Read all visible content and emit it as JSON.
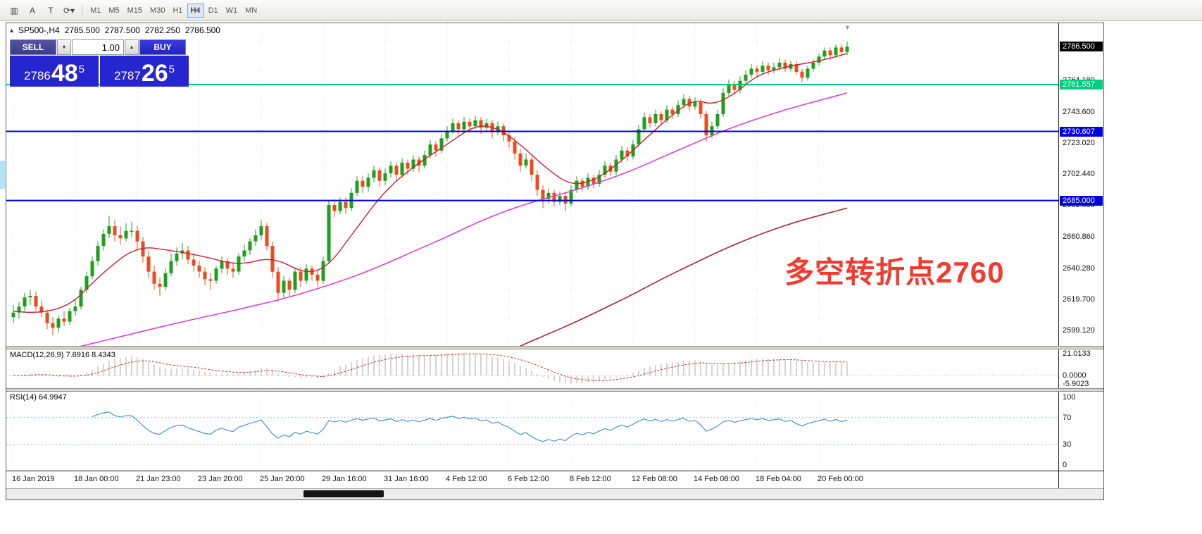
{
  "toolbar": {
    "icons": [
      {
        "name": "chart-tool-icon",
        "glyph": "▥"
      },
      {
        "name": "annotation-a-icon",
        "glyph": "A"
      },
      {
        "name": "text-label-icon",
        "glyph": "T"
      },
      {
        "name": "cycles-dropdown-icon",
        "glyph": "⟳▾"
      }
    ],
    "timeframes": [
      "M1",
      "M5",
      "M15",
      "M30",
      "H1",
      "H4",
      "D1",
      "W1",
      "MN"
    ],
    "active_timeframe": "H4"
  },
  "header": {
    "symbol": "SP500-,H4",
    "open": "2785.500",
    "high": "2787.500",
    "low": "2782.250",
    "close": "2786.500"
  },
  "trade_panel": {
    "sell_label": "SELL",
    "buy_label": "BUY",
    "volume": "1.00",
    "bid_main": "2786",
    "bid_big": "48",
    "bid_sup": "5",
    "ask_main": "2787",
    "ask_big": "26",
    "ask_sup": "5"
  },
  "price_axis": {
    "current": "2786.500",
    "ticks": [
      "2764.180",
      "2743.600",
      "2723.020",
      "2702.440",
      "2681.860",
      "2660.860",
      "2640.280",
      "2619.700",
      "2599.120"
    ]
  },
  "macd_panel": {
    "header": "MACD(12,26,9) 7.6916 8.4343",
    "tick_top": "21.0133",
    "tick_zero": "0.0000",
    "tick_bottom": "-5.9023"
  },
  "rsi_panel": {
    "header": "RSI(14) 64.9947",
    "ticks": [
      "100",
      "70",
      "30",
      "0"
    ]
  },
  "annotation": {
    "text": "多空转折点2760"
  },
  "x_axis": {
    "labels": [
      {
        "text": "16 Jan 2019",
        "index": 0
      },
      {
        "text": "18 Jan 00:00",
        "index": 11
      },
      {
        "text": "21 Jan 23:00",
        "index": 22
      },
      {
        "text": "23 Jan 20:00",
        "index": 33
      },
      {
        "text": "25 Jan 20:00",
        "index": 44
      },
      {
        "text": "29 Jan 16:00",
        "index": 55
      },
      {
        "text": "31 Jan 16:00",
        "index": 66
      },
      {
        "text": "4 Feb 12:00",
        "index": 77
      },
      {
        "text": "6 Feb 12:00",
        "index": 88
      },
      {
        "text": "8 Feb 12:00",
        "index": 99
      },
      {
        "text": "12 Feb 08:00",
        "index": 110
      },
      {
        "text": "14 Feb 08:00",
        "index": 121
      },
      {
        "text": "18 Feb 04:00",
        "index": 132
      },
      {
        "text": "20 Feb 00:00",
        "index": 143
      }
    ]
  },
  "colors": {
    "up": "#1ba11b",
    "down": "#ea4c1e",
    "ma_fast": "#cc2030",
    "ma_mid": "#e03fd0",
    "ma_slow": "#a82432",
    "macd_signal": "#cc3333",
    "macd_histogram": "#a9a9a9",
    "rsi_line": "#4a94cc",
    "grid": "#d9d9d9",
    "annotation": "#f23b2e",
    "level_green": "#00cf7f",
    "level_blue": "#0000e0",
    "trade_blue": "#2626d0",
    "current_price_bg": "#000000"
  },
  "chart_data": {
    "type": "candlestick",
    "symbol": "SP500-",
    "timeframe": "H4",
    "y_range": [
      2589,
      2802
    ],
    "current_price": 2786.5,
    "hlines": [
      {
        "value": 2761.557,
        "label": "2761.557",
        "color": "#00cf7f"
      },
      {
        "value": 2730.607,
        "label": "2730.607",
        "color": "#0000e0"
      },
      {
        "value": 2685.0,
        "label": "2685.000",
        "color": "#0000e0"
      }
    ],
    "candles": [
      [
        2608,
        2616,
        2604,
        2611
      ],
      [
        2611,
        2618,
        2607,
        2615
      ],
      [
        2615,
        2624,
        2612,
        2621
      ],
      [
        2621,
        2626,
        2616,
        2622
      ],
      [
        2622,
        2625,
        2612,
        2615
      ],
      [
        2615,
        2619,
        2608,
        2611
      ],
      [
        2611,
        2613,
        2600,
        2604
      ],
      [
        2604,
        2608,
        2596,
        2601
      ],
      [
        2601,
        2609,
        2598,
        2607
      ],
      [
        2607,
        2612,
        2602,
        2605
      ],
      [
        2605,
        2614,
        2603,
        2612
      ],
      [
        2612,
        2620,
        2609,
        2615
      ],
      [
        2615,
        2628,
        2613,
        2626
      ],
      [
        2626,
        2638,
        2624,
        2635
      ],
      [
        2635,
        2648,
        2633,
        2645
      ],
      [
        2645,
        2658,
        2642,
        2655
      ],
      [
        2655,
        2666,
        2652,
        2663
      ],
      [
        2663,
        2675,
        2660,
        2668
      ],
      [
        2668,
        2672,
        2658,
        2662
      ],
      [
        2662,
        2668,
        2656,
        2660
      ],
      [
        2660,
        2670,
        2658,
        2665
      ],
      [
        2665,
        2671,
        2661,
        2665
      ],
      [
        2665,
        2668,
        2652,
        2658
      ],
      [
        2658,
        2661,
        2644,
        2648
      ],
      [
        2648,
        2652,
        2634,
        2638
      ],
      [
        2638,
        2642,
        2626,
        2630
      ],
      [
        2630,
        2634,
        2622,
        2628
      ],
      [
        2628,
        2640,
        2626,
        2637
      ],
      [
        2637,
        2650,
        2635,
        2645
      ],
      [
        2645,
        2654,
        2642,
        2650
      ],
      [
        2650,
        2657,
        2646,
        2652
      ],
      [
        2652,
        2655,
        2643,
        2646
      ],
      [
        2646,
        2650,
        2638,
        2642
      ],
      [
        2642,
        2645,
        2634,
        2638
      ],
      [
        2638,
        2641,
        2629,
        2633
      ],
      [
        2633,
        2637,
        2626,
        2632
      ],
      [
        2632,
        2642,
        2630,
        2640
      ],
      [
        2640,
        2648,
        2637,
        2645
      ],
      [
        2645,
        2647,
        2636,
        2640
      ],
      [
        2640,
        2644,
        2634,
        2638
      ],
      [
        2638,
        2650,
        2636,
        2648
      ],
      [
        2648,
        2656,
        2645,
        2652
      ],
      [
        2652,
        2660,
        2649,
        2658
      ],
      [
        2658,
        2666,
        2655,
        2662
      ],
      [
        2662,
        2672,
        2659,
        2668
      ],
      [
        2668,
        2670,
        2652,
        2655
      ],
      [
        2655,
        2658,
        2634,
        2638
      ],
      [
        2638,
        2641,
        2618,
        2624
      ],
      [
        2624,
        2635,
        2621,
        2632
      ],
      [
        2632,
        2634,
        2622,
        2626
      ],
      [
        2626,
        2641,
        2624,
        2638
      ],
      [
        2638,
        2641,
        2628,
        2632
      ],
      [
        2632,
        2643,
        2630,
        2640
      ],
      [
        2640,
        2642,
        2632,
        2636
      ],
      [
        2636,
        2639,
        2628,
        2632
      ],
      [
        2632,
        2648,
        2630,
        2645
      ],
      [
        2645,
        2685,
        2643,
        2682
      ],
      [
        2682,
        2686,
        2674,
        2678
      ],
      [
        2678,
        2687,
        2676,
        2684
      ],
      [
        2684,
        2687,
        2676,
        2680
      ],
      [
        2680,
        2693,
        2678,
        2690
      ],
      [
        2690,
        2701,
        2688,
        2698
      ],
      [
        2698,
        2701,
        2690,
        2694
      ],
      [
        2694,
        2703,
        2691,
        2700
      ],
      [
        2700,
        2708,
        2697,
        2705
      ],
      [
        2705,
        2707,
        2694,
        2698
      ],
      [
        2698,
        2706,
        2695,
        2703
      ],
      [
        2703,
        2711,
        2700,
        2708
      ],
      [
        2708,
        2710,
        2698,
        2702
      ],
      [
        2702,
        2713,
        2700,
        2710
      ],
      [
        2710,
        2712,
        2702,
        2706
      ],
      [
        2706,
        2715,
        2704,
        2712
      ],
      [
        2712,
        2714,
        2704,
        2708
      ],
      [
        2708,
        2718,
        2706,
        2715
      ],
      [
        2715,
        2725,
        2713,
        2722
      ],
      [
        2722,
        2724,
        2714,
        2718
      ],
      [
        2718,
        2729,
        2716,
        2726
      ],
      [
        2726,
        2734,
        2724,
        2731
      ],
      [
        2731,
        2739,
        2729,
        2736
      ],
      [
        2736,
        2738,
        2728,
        2732
      ],
      [
        2732,
        2740,
        2730,
        2737
      ],
      [
        2737,
        2739,
        2730,
        2734
      ],
      [
        2734,
        2741,
        2732,
        2738
      ],
      [
        2738,
        2740,
        2729,
        2733
      ],
      [
        2733,
        2739,
        2731,
        2736
      ],
      [
        2736,
        2738,
        2726,
        2730
      ],
      [
        2730,
        2737,
        2728,
        2734
      ],
      [
        2734,
        2736,
        2724,
        2728
      ],
      [
        2728,
        2731,
        2720,
        2724
      ],
      [
        2724,
        2727,
        2712,
        2716
      ],
      [
        2716,
        2719,
        2704,
        2708
      ],
      [
        2708,
        2716,
        2706,
        2712
      ],
      [
        2712,
        2714,
        2698,
        2702
      ],
      [
        2702,
        2705,
        2688,
        2692
      ],
      [
        2692,
        2695,
        2680,
        2686
      ],
      [
        2686,
        2693,
        2683,
        2690
      ],
      [
        2690,
        2692,
        2681,
        2684
      ],
      [
        2684,
        2691,
        2682,
        2688
      ],
      [
        2688,
        2690,
        2678,
        2683
      ],
      [
        2683,
        2695,
        2681,
        2692
      ],
      [
        2692,
        2701,
        2690,
        2698
      ],
      [
        2698,
        2700,
        2691,
        2694
      ],
      [
        2694,
        2703,
        2692,
        2700
      ],
      [
        2700,
        2702,
        2693,
        2696
      ],
      [
        2696,
        2705,
        2694,
        2702
      ],
      [
        2702,
        2711,
        2700,
        2708
      ],
      [
        2708,
        2710,
        2701,
        2704
      ],
      [
        2704,
        2715,
        2702,
        2712
      ],
      [
        2712,
        2721,
        2710,
        2718
      ],
      [
        2718,
        2720,
        2711,
        2714
      ],
      [
        2714,
        2725,
        2712,
        2722
      ],
      [
        2722,
        2735,
        2720,
        2732
      ],
      [
        2732,
        2743,
        2730,
        2740
      ],
      [
        2740,
        2742,
        2733,
        2736
      ],
      [
        2736,
        2745,
        2734,
        2742
      ],
      [
        2742,
        2744,
        2735,
        2738
      ],
      [
        2738,
        2748,
        2736,
        2745
      ],
      [
        2745,
        2747,
        2739,
        2742
      ],
      [
        2742,
        2751,
        2740,
        2748
      ],
      [
        2748,
        2755,
        2746,
        2752
      ],
      [
        2752,
        2754,
        2744,
        2747
      ],
      [
        2747,
        2753,
        2745,
        2750
      ],
      [
        2750,
        2752,
        2739,
        2742
      ],
      [
        2742,
        2744,
        2724,
        2728
      ],
      [
        2728,
        2737,
        2726,
        2734
      ],
      [
        2734,
        2745,
        2732,
        2742
      ],
      [
        2742,
        2759,
        2740,
        2756
      ],
      [
        2756,
        2765,
        2754,
        2762
      ],
      [
        2762,
        2764,
        2755,
        2758
      ],
      [
        2758,
        2767,
        2756,
        2764
      ],
      [
        2764,
        2771,
        2762,
        2768
      ],
      [
        2768,
        2775,
        2766,
        2772
      ],
      [
        2772,
        2774,
        2766,
        2770
      ],
      [
        2770,
        2777,
        2768,
        2774
      ],
      [
        2774,
        2776,
        2768,
        2771
      ],
      [
        2771,
        2776,
        2769,
        2773
      ],
      [
        2773,
        2779,
        2771,
        2776
      ],
      [
        2776,
        2778,
        2770,
        2772
      ],
      [
        2772,
        2777,
        2770,
        2775
      ],
      [
        2775,
        2777,
        2768,
        2770
      ],
      [
        2770,
        2772,
        2763,
        2766
      ],
      [
        2766,
        2774,
        2764,
        2772
      ],
      [
        2772,
        2778,
        2770,
        2776
      ],
      [
        2776,
        2782,
        2774,
        2780
      ],
      [
        2780,
        2786,
        2778,
        2784
      ],
      [
        2784,
        2786,
        2778,
        2781
      ],
      [
        2781,
        2788,
        2779,
        2786
      ],
      [
        2786,
        2788,
        2780,
        2783
      ],
      [
        2783,
        2790,
        2781,
        2786.5
      ]
    ],
    "ma_fast": [
      [
        0,
        2612
      ],
      [
        8,
        2608
      ],
      [
        16,
        2638
      ],
      [
        22,
        2655
      ],
      [
        28,
        2652
      ],
      [
        34,
        2648
      ],
      [
        40,
        2642
      ],
      [
        46,
        2648
      ],
      [
        52,
        2636
      ],
      [
        56,
        2642
      ],
      [
        60,
        2662
      ],
      [
        66,
        2692
      ],
      [
        72,
        2710
      ],
      [
        77,
        2722
      ],
      [
        82,
        2735
      ],
      [
        86,
        2733
      ],
      [
        90,
        2722
      ],
      [
        95,
        2705
      ],
      [
        99,
        2695
      ],
      [
        103,
        2698
      ],
      [
        107,
        2708
      ],
      [
        112,
        2725
      ],
      [
        117,
        2742
      ],
      [
        121,
        2752
      ],
      [
        124,
        2748
      ],
      [
        128,
        2755
      ],
      [
        132,
        2768
      ],
      [
        138,
        2774
      ],
      [
        143,
        2777
      ],
      [
        148,
        2782
      ]
    ],
    "ma_mid": [
      [
        0,
        2578
      ],
      [
        10,
        2587
      ],
      [
        20,
        2596
      ],
      [
        30,
        2605
      ],
      [
        40,
        2613
      ],
      [
        50,
        2622
      ],
      [
        60,
        2634
      ],
      [
        66,
        2643
      ],
      [
        72,
        2653
      ],
      [
        77,
        2661
      ],
      [
        82,
        2670
      ],
      [
        88,
        2679
      ],
      [
        94,
        2686
      ],
      [
        99,
        2691
      ],
      [
        104,
        2697
      ],
      [
        110,
        2705
      ],
      [
        116,
        2715
      ],
      [
        121,
        2723
      ],
      [
        126,
        2731
      ],
      [
        132,
        2739
      ],
      [
        138,
        2746
      ],
      [
        143,
        2751
      ],
      [
        148,
        2756
      ]
    ],
    "ma_slow": [
      [
        86,
        2582
      ],
      [
        90,
        2589
      ],
      [
        95,
        2597
      ],
      [
        100,
        2605
      ],
      [
        105,
        2614
      ],
      [
        110,
        2623
      ],
      [
        115,
        2633
      ],
      [
        120,
        2642
      ],
      [
        125,
        2651
      ],
      [
        130,
        2659
      ],
      [
        135,
        2666
      ],
      [
        140,
        2672
      ],
      [
        144,
        2676
      ],
      [
        148,
        2680
      ]
    ]
  }
}
